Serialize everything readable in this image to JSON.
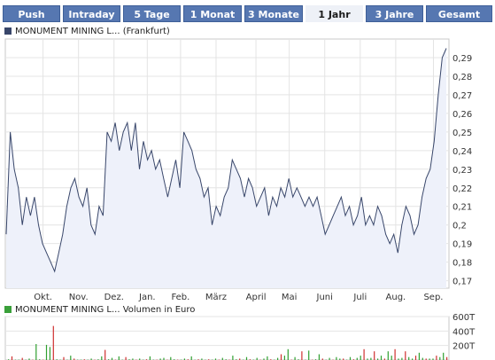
{
  "tabs": [
    {
      "label": "Push",
      "active": false
    },
    {
      "label": "Intraday",
      "active": false
    },
    {
      "label": "5 Tage",
      "active": false
    },
    {
      "label": "1 Monat",
      "active": false
    },
    {
      "label": "3 Monate",
      "active": false
    },
    {
      "label": "1 Jahr",
      "active": true
    },
    {
      "label": "3 Jahre",
      "active": false
    },
    {
      "label": "Gesamt",
      "active": false
    }
  ],
  "colors": {
    "tab_bg": "#5677b1",
    "line": "#38466a",
    "area": "#eef1fa",
    "volume_red": "#d03030",
    "volume_green": "#30a030",
    "legend_price": "#38466a",
    "legend_volume": "#3aa03a"
  },
  "price_legend": "MONUMENT MINING L... (Frankfurt)",
  "volume_legend": "MONUMENT MINING L... Volumen in Euro",
  "chart_data": [
    {
      "type": "area",
      "series": [
        {
          "name": "MONUMENT MINING L... (Frankfurt)",
          "values": [
            0.195,
            0.25,
            0.23,
            0.22,
            0.2,
            0.215,
            0.205,
            0.215,
            0.2,
            0.19,
            0.185,
            0.18,
            0.175,
            0.185,
            0.195,
            0.21,
            0.22,
            0.225,
            0.215,
            0.21,
            0.22,
            0.2,
            0.195,
            0.21,
            0.205,
            0.25,
            0.245,
            0.255,
            0.24,
            0.25,
            0.255,
            0.24,
            0.255,
            0.23,
            0.245,
            0.235,
            0.24,
            0.23,
            0.235,
            0.225,
            0.215,
            0.225,
            0.235,
            0.22,
            0.25,
            0.245,
            0.24,
            0.23,
            0.225,
            0.215,
            0.22,
            0.2,
            0.21,
            0.205,
            0.215,
            0.22,
            0.235,
            0.23,
            0.225,
            0.215,
            0.225,
            0.22,
            0.21,
            0.215,
            0.22,
            0.205,
            0.215,
            0.21,
            0.22,
            0.215,
            0.225,
            0.215,
            0.22,
            0.215,
            0.21,
            0.215,
            0.21,
            0.215,
            0.205,
            0.195,
            0.2,
            0.205,
            0.21,
            0.215,
            0.205,
            0.21,
            0.2,
            0.205,
            0.215,
            0.2,
            0.205,
            0.2,
            0.21,
            0.205,
            0.195,
            0.19,
            0.195,
            0.185,
            0.2,
            0.21,
            0.205,
            0.195,
            0.2,
            0.215,
            0.225,
            0.23,
            0.245,
            0.27,
            0.29,
            0.295
          ]
        }
      ],
      "x_tick_labels": [
        "Okt.",
        "Nov.",
        "Dez.",
        "Jan.",
        "Feb.",
        "März",
        "April",
        "Mai",
        "Juni",
        "Juli",
        "Aug.",
        "Sep."
      ],
      "y_tick_labels": [
        "0,17",
        "0,18",
        "0,19",
        "0,2",
        "0,21",
        "0,22",
        "0,23",
        "0,24",
        "0,25",
        "0,26",
        "0,27",
        "0,28",
        "0,29"
      ],
      "y_ticks": [
        0.17,
        0.18,
        0.19,
        0.2,
        0.21,
        0.22,
        0.23,
        0.24,
        0.25,
        0.26,
        0.27,
        0.28,
        0.29
      ],
      "ylim": [
        0.166,
        0.3
      ],
      "grid": true
    },
    {
      "type": "bar",
      "series": [
        {
          "name": "MONUMENT MINING L... Volumen in Euro",
          "values": [
            10,
            50,
            5,
            5,
            30,
            5,
            20,
            5,
            220,
            10,
            5,
            210,
            180,
            470,
            10,
            5,
            40,
            5,
            60,
            20,
            5,
            5,
            10,
            5,
            20,
            5,
            10,
            50,
            140,
            10,
            30,
            5,
            50,
            5,
            40,
            10,
            20,
            5,
            20,
            5,
            10,
            50,
            5,
            5,
            20,
            30,
            5,
            40,
            10,
            5,
            5,
            20,
            10,
            50,
            5,
            10,
            20,
            5,
            10,
            5,
            20,
            5,
            30,
            10,
            5,
            60,
            10,
            20,
            5,
            40,
            10,
            5,
            30,
            5,
            20,
            50,
            10,
            5,
            30,
            80,
            60,
            150,
            5,
            40,
            10,
            120,
            5,
            130,
            5,
            10,
            80,
            20,
            5,
            30,
            5,
            40,
            20,
            20,
            5,
            40,
            10,
            30,
            60,
            150,
            20,
            30,
            120,
            20,
            60,
            20,
            120,
            60,
            150,
            20,
            30,
            120,
            40,
            20,
            60,
            100,
            30,
            20,
            20,
            20,
            60,
            40,
            100,
            40
          ]
        }
      ],
      "y_tick_labels": [
        "200T",
        "400T",
        "600T"
      ],
      "y_ticks": [
        200,
        400,
        600
      ],
      "ylim": [
        0,
        600
      ]
    }
  ]
}
